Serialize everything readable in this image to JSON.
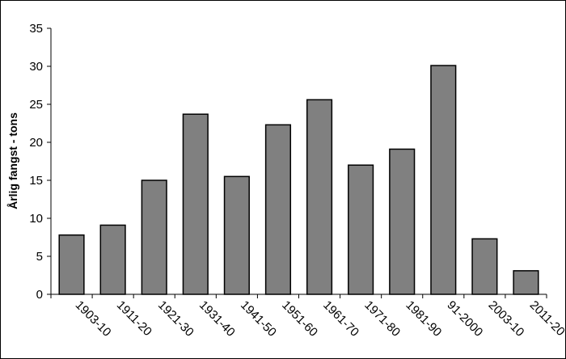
{
  "chart_data": {
    "type": "bar",
    "title": "",
    "xlabel": "",
    "ylabel": "Årlig fangst - tons",
    "categories": [
      "1903-10",
      "1911-20",
      "1921-30",
      "1931-40",
      "1941-50",
      "1951-60",
      "1961-70",
      "1971-80",
      "1981-90",
      "91-2000",
      "2003-10",
      "2011-20"
    ],
    "values": [
      7.8,
      9.1,
      15.0,
      23.7,
      15.5,
      22.3,
      25.6,
      17.0,
      19.1,
      30.1,
      7.3,
      3.1
    ],
    "ylim": [
      0,
      35
    ],
    "yticks": [
      0,
      5,
      10,
      15,
      20,
      25,
      30,
      35
    ],
    "grid": false,
    "legend": "none",
    "bar_color": "#808080",
    "bar_stroke": "#000000"
  }
}
